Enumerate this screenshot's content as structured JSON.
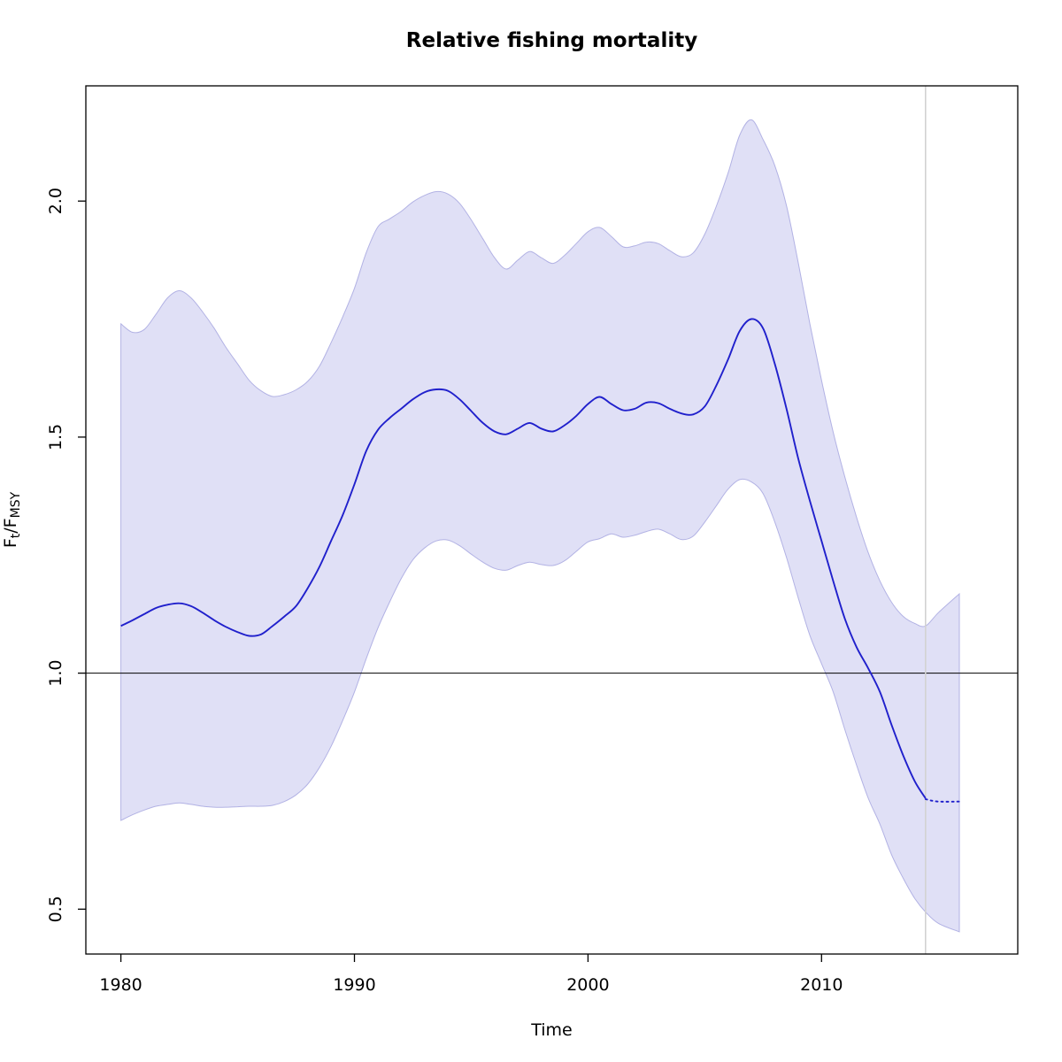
{
  "title": "Relative fishing mortality",
  "chart_data": {
    "type": "line",
    "title": "Relative fishing mortality",
    "xlabel": "Time",
    "ylabel": "Ft/FMSY",
    "ylabel_parts": {
      "main1": "F",
      "sub1": "t",
      "sep": "/",
      "main2": "F",
      "sub2": "MSY"
    },
    "x_ticks": [
      1980,
      1990,
      2000,
      2010
    ],
    "x_tick_labels": [
      "1980",
      "1990",
      "2000",
      "2010"
    ],
    "y_ticks": [
      0.5,
      1.0,
      1.5,
      2.0
    ],
    "y_tick_labels": [
      "0.5",
      "1.0",
      "1.5",
      "2.0"
    ],
    "xlim": [
      1978.5,
      2018.4
    ],
    "ylim": [
      0.405,
      2.244
    ],
    "grid": false,
    "legend": "none",
    "reference_line_y": 1.0,
    "vline_x": 2014.45,
    "series_end_x": 2015.9,
    "x": [
      1980.0,
      1980.5,
      1981.0,
      1981.5,
      1982.0,
      1982.5,
      1983.0,
      1983.5,
      1984.0,
      1984.5,
      1985.0,
      1985.5,
      1986.0,
      1986.5,
      1987.0,
      1987.5,
      1988.0,
      1988.5,
      1989.0,
      1989.5,
      1990.0,
      1990.5,
      1991.0,
      1991.5,
      1992.0,
      1992.5,
      1993.0,
      1993.5,
      1994.0,
      1994.5,
      1995.0,
      1995.5,
      1996.0,
      1996.5,
      1997.0,
      1997.5,
      1998.0,
      1998.5,
      1999.0,
      1999.5,
      2000.0,
      2000.5,
      2001.0,
      2001.5,
      2002.0,
      2002.5,
      2003.0,
      2003.5,
      2004.0,
      2004.5,
      2005.0,
      2005.5,
      2006.0,
      2006.5,
      2007.0,
      2007.5,
      2008.0,
      2008.5,
      2009.0,
      2009.5,
      2010.0,
      2010.5,
      2011.0,
      2011.5,
      2012.0,
      2012.5,
      2013.0,
      2013.5,
      2014.0,
      2014.45
    ],
    "median": [
      1.1,
      1.112,
      1.125,
      1.138,
      1.145,
      1.148,
      1.142,
      1.128,
      1.112,
      1.098,
      1.087,
      1.079,
      1.082,
      1.1,
      1.12,
      1.142,
      1.18,
      1.225,
      1.28,
      1.335,
      1.4,
      1.47,
      1.515,
      1.54,
      1.56,
      1.58,
      1.595,
      1.601,
      1.598,
      1.58,
      1.555,
      1.53,
      1.512,
      1.506,
      1.518,
      1.53,
      1.518,
      1.512,
      1.525,
      1.545,
      1.57,
      1.585,
      1.57,
      1.557,
      1.56,
      1.573,
      1.572,
      1.56,
      1.55,
      1.548,
      1.565,
      1.61,
      1.665,
      1.725,
      1.75,
      1.73,
      1.655,
      1.56,
      1.455,
      1.365,
      1.28,
      1.195,
      1.115,
      1.055,
      1.01,
      0.96,
      0.89,
      0.825,
      0.77,
      0.735
    ],
    "upper": [
      1.74,
      1.722,
      1.728,
      1.76,
      1.795,
      1.81,
      1.795,
      1.765,
      1.73,
      1.69,
      1.655,
      1.62,
      1.598,
      1.586,
      1.59,
      1.6,
      1.618,
      1.65,
      1.7,
      1.755,
      1.815,
      1.89,
      1.945,
      1.962,
      1.978,
      1.998,
      2.012,
      2.02,
      2.015,
      1.995,
      1.96,
      1.92,
      1.88,
      1.856,
      1.875,
      1.893,
      1.88,
      1.868,
      1.885,
      1.91,
      1.935,
      1.944,
      1.925,
      1.903,
      1.905,
      1.913,
      1.91,
      1.895,
      1.882,
      1.89,
      1.93,
      1.99,
      2.06,
      2.14,
      2.172,
      2.13,
      2.075,
      1.99,
      1.87,
      1.74,
      1.62,
      1.51,
      1.415,
      1.33,
      1.255,
      1.195,
      1.15,
      1.12,
      1.105,
      1.1
    ],
    "lower": [
      0.688,
      0.7,
      0.71,
      0.718,
      0.722,
      0.725,
      0.722,
      0.718,
      0.716,
      0.716,
      0.717,
      0.718,
      0.718,
      0.72,
      0.728,
      0.742,
      0.765,
      0.8,
      0.845,
      0.9,
      0.96,
      1.03,
      1.095,
      1.15,
      1.2,
      1.24,
      1.265,
      1.28,
      1.282,
      1.27,
      1.252,
      1.235,
      1.222,
      1.218,
      1.228,
      1.235,
      1.23,
      1.228,
      1.238,
      1.258,
      1.278,
      1.285,
      1.295,
      1.288,
      1.292,
      1.3,
      1.305,
      1.295,
      1.283,
      1.29,
      1.32,
      1.355,
      1.39,
      1.41,
      1.405,
      1.38,
      1.32,
      1.245,
      1.16,
      1.08,
      1.02,
      0.96,
      0.88,
      0.805,
      0.735,
      0.68,
      0.615,
      0.565,
      0.522,
      0.494
    ],
    "prediction": {
      "x": [
        2014.45,
        2015.0,
        2015.9
      ],
      "median": [
        0.733,
        0.728,
        0.728
      ],
      "upper": [
        1.1,
        1.128,
        1.168
      ],
      "lower": [
        0.494,
        0.47,
        0.452
      ]
    },
    "colors": {
      "line": "#2020cc",
      "band_fill": "#e0e0f6",
      "band_edge": "#b2b2e4",
      "reference_line": "#000000",
      "vline": "#d2d2d2",
      "box": "#000000",
      "text": "#000000"
    }
  }
}
